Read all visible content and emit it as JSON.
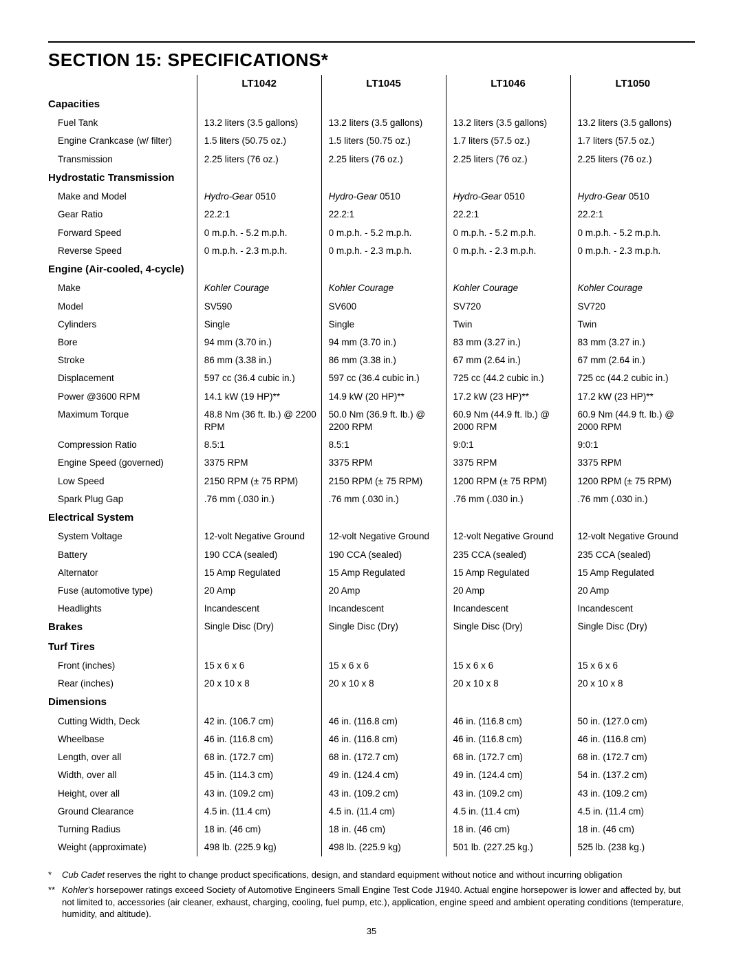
{
  "title": "SECTION 15: SPECIFICATIONS*",
  "models": [
    "LT1042",
    "LT1045",
    "LT1046",
    "LT1050"
  ],
  "sections": [
    {
      "name": "Capacities",
      "rows": [
        {
          "label": "Fuel Tank",
          "v": [
            "13.2 liters (3.5 gallons)",
            "13.2 liters (3.5 gallons)",
            "13.2 liters (3.5 gallons)",
            "13.2 liters (3.5 gallons)"
          ]
        },
        {
          "label": "Engine Crankcase (w/ filter)",
          "v": [
            "1.5 liters (50.75 oz.)",
            "1.5 liters (50.75 oz.)",
            "1.7 liters (57.5 oz.)",
            "1.7 liters (57.5 oz.)"
          ]
        },
        {
          "label": "Transmission",
          "v": [
            "2.25 liters (76 oz.)",
            "2.25 liters (76 oz.)",
            "2.25 liters (76 oz.)",
            "2.25 liters (76 oz.)"
          ]
        }
      ]
    },
    {
      "name": "Hydrostatic Transmission",
      "rows": [
        {
          "label": "Make and Model",
          "italic": [
            "Hydro-Gear",
            "Hydro-Gear",
            "Hydro-Gear",
            "Hydro-Gear"
          ],
          "suffix": [
            " 0510",
            " 0510",
            " 0510",
            " 0510"
          ]
        },
        {
          "label": "Gear Ratio",
          "v": [
            "22.2:1",
            "22.2:1",
            "22.2:1",
            "22.2:1"
          ]
        },
        {
          "label": "Forward Speed",
          "v": [
            "0 m.p.h. - 5.2 m.p.h.",
            "0 m.p.h. - 5.2 m.p.h.",
            "0 m.p.h. - 5.2 m.p.h.",
            "0 m.p.h. - 5.2 m.p.h."
          ]
        },
        {
          "label": "Reverse Speed",
          "v": [
            "0 m.p.h. - 2.3 m.p.h.",
            "0 m.p.h. - 2.3 m.p.h.",
            "0 m.p.h. - 2.3 m.p.h.",
            "0 m.p.h. - 2.3 m.p.h."
          ]
        }
      ]
    },
    {
      "name": "Engine (Air-cooled, 4-cycle)",
      "rows": [
        {
          "label": "Make",
          "italic": [
            "Kohler Courage",
            "Kohler Courage",
            "Kohler Courage",
            "Kohler Courage"
          ]
        },
        {
          "label": "Model",
          "v": [
            "SV590",
            "SV600",
            "SV720",
            "SV720"
          ]
        },
        {
          "label": "Cylinders",
          "v": [
            "Single",
            "Single",
            "Twin",
            "Twin"
          ]
        },
        {
          "label": "Bore",
          "v": [
            "94 mm (3.70 in.)",
            "94 mm (3.70 in.)",
            "83 mm (3.27 in.)",
            "83 mm (3.27 in.)"
          ]
        },
        {
          "label": "Stroke",
          "v": [
            "86 mm (3.38 in.)",
            "86 mm (3.38 in.)",
            "67 mm (2.64 in.)",
            "67 mm (2.64 in.)"
          ]
        },
        {
          "label": "Displacement",
          "v": [
            "597 cc (36.4 cubic in.)",
            "597 cc (36.4 cubic in.)",
            "725 cc (44.2 cubic in.)",
            "725 cc (44.2 cubic in.)"
          ]
        },
        {
          "label": "Power @3600 RPM",
          "v": [
            "14.1 kW (19 HP)**",
            "14.9 kW (20 HP)**",
            "17.2 kW (23 HP)**",
            "17.2 kW (23 HP)**"
          ]
        },
        {
          "label": "Maximum Torque",
          "v": [
            "48.8 Nm (36 ft. lb.) @ 2200 RPM",
            "50.0 Nm (36.9 ft. lb.) @ 2200 RPM",
            "60.9 Nm (44.9 ft. lb.) @ 2000 RPM",
            "60.9 Nm (44.9 ft. lb.) @ 2000 RPM"
          ]
        },
        {
          "label": "Compression Ratio",
          "v": [
            "8.5:1",
            "8.5:1",
            "9:0:1",
            "9:0:1"
          ]
        },
        {
          "label": "Engine Speed (governed)",
          "v": [
            "3375 RPM",
            "3375 RPM",
            "3375 RPM",
            "3375 RPM"
          ]
        },
        {
          "label": "Low Speed",
          "v": [
            "2150 RPM (± 75 RPM)",
            "2150 RPM (± 75 RPM)",
            "1200 RPM (± 75 RPM)",
            "1200 RPM (± 75 RPM)"
          ]
        },
        {
          "label": "Spark Plug Gap",
          "v": [
            ".76 mm (.030 in.)",
            ".76 mm (.030 in.)",
            ".76 mm (.030 in.)",
            ".76 mm (.030 in.)"
          ]
        }
      ]
    },
    {
      "name": "Electrical System",
      "rows": [
        {
          "label": "System Voltage",
          "v": [
            "12-volt Negative Ground",
            "12-volt Negative Ground",
            "12-volt Negative Ground",
            "12-volt Negative Ground"
          ]
        },
        {
          "label": "Battery",
          "v": [
            "190 CCA (sealed)",
            "190 CCA (sealed)",
            "235 CCA (sealed)",
            "235 CCA (sealed)"
          ]
        },
        {
          "label": "Alternator",
          "v": [
            "15 Amp Regulated",
            "15 Amp Regulated",
            "15 Amp Regulated",
            "15 Amp Regulated"
          ]
        },
        {
          "label": "Fuse (automotive type)",
          "v": [
            "20 Amp",
            "20 Amp",
            "20 Amp",
            "20 Amp"
          ]
        },
        {
          "label": "Headlights",
          "v": [
            "Incandescent",
            "Incandescent",
            "Incandescent",
            "Incandescent"
          ]
        }
      ]
    },
    {
      "name": "Brakes",
      "inline_values": [
        "Single Disc (Dry)",
        "Single Disc (Dry)",
        "Single Disc (Dry)",
        "Single Disc (Dry)"
      ],
      "rows": []
    },
    {
      "name": "Turf Tires",
      "rows": [
        {
          "label": "Front (inches)",
          "v": [
            "15 x 6 x 6",
            "15 x 6 x 6",
            "15 x 6 x 6",
            "15 x 6 x 6"
          ]
        },
        {
          "label": "Rear (inches)",
          "v": [
            "20 x 10 x 8",
            "20 x 10 x 8",
            "20 x 10 x 8",
            "20 x 10 x 8"
          ]
        }
      ]
    },
    {
      "name": "Dimensions",
      "rows": [
        {
          "label": "Cutting Width, Deck",
          "v": [
            "42 in. (106.7 cm)",
            "46 in. (116.8 cm)",
            "46 in. (116.8 cm)",
            "50 in. (127.0 cm)"
          ]
        },
        {
          "label": "Wheelbase",
          "v": [
            "46 in. (116.8 cm)",
            "46 in. (116.8 cm)",
            "46 in. (116.8 cm)",
            "46 in. (116.8 cm)"
          ]
        },
        {
          "label": "Length, over all",
          "v": [
            "68 in. (172.7 cm)",
            "68 in. (172.7 cm)",
            "68 in. (172.7 cm)",
            "68 in. (172.7 cm)"
          ]
        },
        {
          "label": "Width, over all",
          "v": [
            "45 in. (114.3 cm)",
            "49 in. (124.4 cm)",
            "49 in. (124.4 cm)",
            "54 in. (137.2 cm)"
          ]
        },
        {
          "label": "Height, over all",
          "v": [
            "43 in. (109.2 cm)",
            "43 in. (109.2 cm)",
            "43 in. (109.2 cm)",
            "43 in. (109.2 cm)"
          ]
        },
        {
          "label": "Ground Clearance",
          "v": [
            "4.5 in. (11.4 cm)",
            "4.5 in. (11.4 cm)",
            "4.5 in. (11.4 cm)",
            "4.5 in. (11.4 cm)"
          ]
        },
        {
          "label": "Turning Radius",
          "v": [
            "18 in. (46 cm)",
            "18 in. (46 cm)",
            "18 in. (46 cm)",
            "18 in. (46 cm)"
          ]
        },
        {
          "label": "Weight (approximate)",
          "v": [
            "498 lb. (225.9 kg)",
            "498 lb. (225.9 kg)",
            "501 lb. (227.25 kg.)",
            "525 lb. (238 kg.)"
          ]
        }
      ]
    }
  ],
  "footnotes": [
    {
      "mark": "*",
      "italic": "Cub Cadet",
      "text": " reserves the right to change product specifications, design, and standard equipment without notice and without incurring obligation"
    },
    {
      "mark": "**",
      "italic": "Kohler's",
      "text": " horsepower ratings exceed Society of Automotive Engineers Small Engine Test Code J1940. Actual engine horsepower is lower and affected by, but not limited to, accessories (air cleaner, exhaust, charging, cooling, fuel pump, etc.), application, engine speed and ambient operating conditions (temperature, humidity, and altitude)."
    }
  ],
  "page_number": "35"
}
